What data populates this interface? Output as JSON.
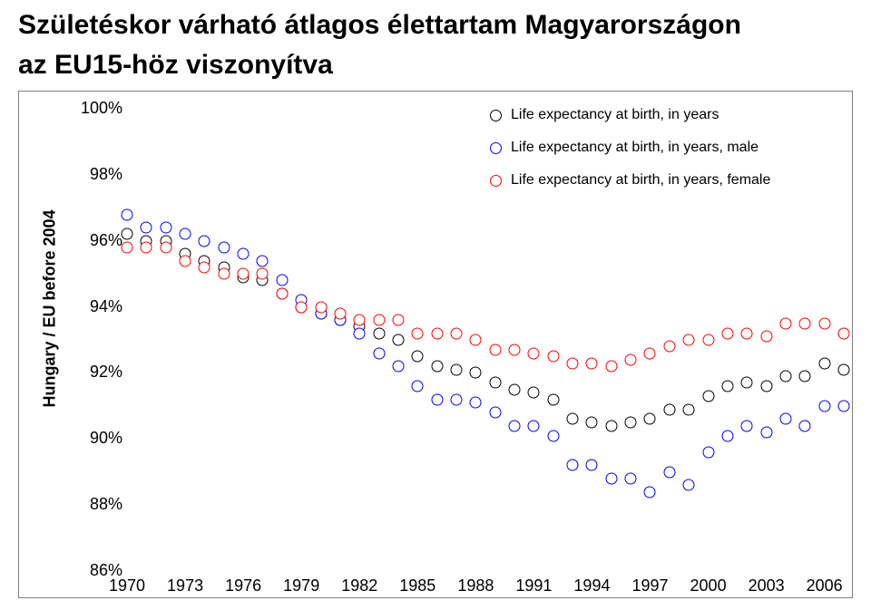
{
  "title_line1": "Születéskor várható átlagos élettartam Magyarországon",
  "title_line2": "az EU15-höz viszonyítva",
  "title_fontsize": 30,
  "title_color": "#000000",
  "chart": {
    "type": "scatter",
    "background_color": "#ffffff",
    "border_color": "#7f7f7f",
    "ylabel": "Hungary / EU before 2004",
    "ylabel_fontsize": 18,
    "ylabel_fontweight": "700",
    "ylim": [
      86,
      100
    ],
    "ytick_step": 2,
    "ytick_labels": [
      "86%",
      "88%",
      "90%",
      "92%",
      "94%",
      "96%",
      "98%",
      "100%"
    ],
    "xlim": [
      1970,
      2007
    ],
    "xtick_step": 3,
    "xtick_labels": [
      "1970",
      "1973",
      "1976",
      "1979",
      "1982",
      "1985",
      "1988",
      "1991",
      "1994",
      "1997",
      "2000",
      "2003",
      "2006"
    ],
    "tick_fontsize": 18,
    "marker_size": 11,
    "marker_border_width": 1.6,
    "marker_fill": "#ffffff",
    "legend": {
      "position": "top-right",
      "fontsize": 16,
      "items": [
        {
          "label": "Life expectancy at birth, in years",
          "color": "#000000"
        },
        {
          "label": "Life expectancy at birth, in years, male",
          "color": "#0000ff"
        },
        {
          "label": "Life expectancy at birth, in years, female",
          "color": "#ff0000"
        }
      ]
    },
    "series": [
      {
        "name": "total",
        "color": "#000000",
        "x": [
          1970,
          1971,
          1972,
          1973,
          1974,
          1975,
          1976,
          1977,
          1978,
          1979,
          1980,
          1981,
          1982,
          1983,
          1984,
          1985,
          1986,
          1987,
          1988,
          1989,
          1990,
          1991,
          1992,
          1993,
          1994,
          1995,
          1996,
          1997,
          1998,
          1999,
          2000,
          2001,
          2002,
          2003,
          2004,
          2005,
          2006,
          2007
        ],
        "y": [
          96.2,
          96.0,
          96.0,
          95.6,
          95.4,
          95.2,
          94.9,
          94.8,
          94.4,
          94.0,
          93.8,
          93.6,
          93.4,
          93.2,
          93.0,
          92.5,
          92.2,
          92.1,
          92.0,
          91.7,
          91.5,
          91.4,
          91.2,
          90.6,
          90.5,
          90.4,
          90.5,
          90.6,
          90.9,
          90.9,
          91.3,
          91.6,
          91.7,
          91.6,
          91.9,
          91.9,
          92.3,
          92.1
        ]
      },
      {
        "name": "male",
        "color": "#0000ff",
        "x": [
          1970,
          1971,
          1972,
          1973,
          1974,
          1975,
          1976,
          1977,
          1978,
          1979,
          1980,
          1981,
          1982,
          1983,
          1984,
          1985,
          1986,
          1987,
          1988,
          1989,
          1990,
          1991,
          1992,
          1993,
          1994,
          1995,
          1996,
          1997,
          1998,
          1999,
          2000,
          2001,
          2002,
          2003,
          2004,
          2005,
          2006,
          2007
        ],
        "y": [
          96.8,
          96.4,
          96.4,
          96.2,
          96.0,
          95.8,
          95.6,
          95.4,
          94.8,
          94.2,
          93.8,
          93.6,
          93.2,
          92.6,
          92.2,
          91.6,
          91.2,
          91.2,
          91.1,
          90.8,
          90.4,
          90.4,
          90.1,
          89.2,
          89.2,
          88.8,
          88.8,
          88.4,
          89.0,
          88.6,
          89.6,
          90.1,
          90.4,
          90.2,
          90.6,
          90.4,
          91.0,
          91.0
        ]
      },
      {
        "name": "female",
        "color": "#ff0000",
        "x": [
          1970,
          1971,
          1972,
          1973,
          1974,
          1975,
          1976,
          1977,
          1978,
          1979,
          1980,
          1981,
          1982,
          1983,
          1984,
          1985,
          1986,
          1987,
          1988,
          1989,
          1990,
          1991,
          1992,
          1993,
          1994,
          1995,
          1996,
          1997,
          1998,
          1999,
          2000,
          2001,
          2002,
          2003,
          2004,
          2005,
          2006,
          2007
        ],
        "y": [
          95.8,
          95.8,
          95.8,
          95.4,
          95.2,
          95.0,
          95.0,
          95.0,
          94.4,
          94.0,
          94.0,
          93.8,
          93.6,
          93.6,
          93.6,
          93.2,
          93.2,
          93.2,
          93.0,
          92.7,
          92.7,
          92.6,
          92.5,
          92.3,
          92.3,
          92.2,
          92.4,
          92.6,
          92.8,
          93.0,
          93.0,
          93.2,
          93.2,
          93.1,
          93.5,
          93.5,
          93.5,
          93.2
        ]
      }
    ]
  }
}
